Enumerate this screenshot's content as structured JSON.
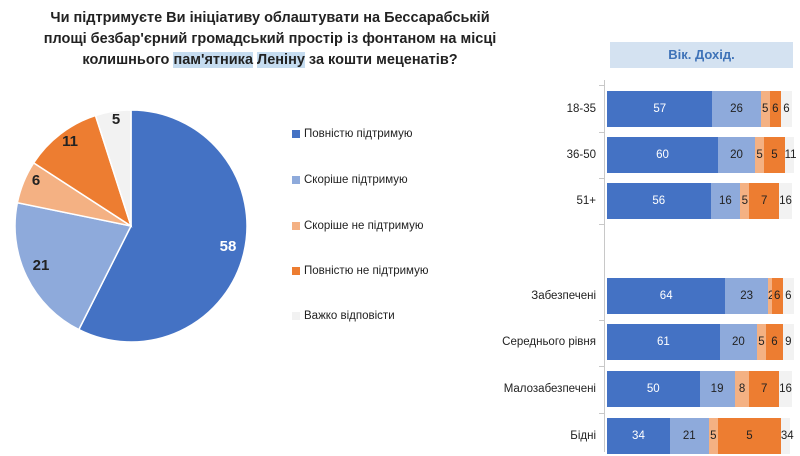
{
  "title": {
    "line1": "Чи підтримуєте Ви ініціативу облаштувати на Бессарабській",
    "line2": "площі безбар'єрний громадський простір із фонтаном на місці",
    "line3_pre": "колишнього ",
    "line3_hl1": "пам'ятника",
    "line3_mid": " ",
    "line3_hl2": "Леніну",
    "line3_post": " за кошти меценатів?"
  },
  "colors": {
    "fully_support": "#4472c4",
    "rather_support": "#8eaadb",
    "rather_not": "#f4b183",
    "fully_not": "#ed7d31",
    "hard_to_say": "#f2f2f2"
  },
  "legend": [
    "Повністю підтримую",
    "Скоріше підтримую",
    "Скоріше не підтримую",
    "Повністю не підтримую",
    "Важко відповісти"
  ],
  "header_label": "Вік. Дохід.",
  "chart_data": [
    {
      "type": "pie",
      "title": "",
      "labels": [
        "Повністю підтримую",
        "Скоріше підтримую",
        "Скоріше не підтримую",
        "Повністю не підтримую",
        "Важко відповісти"
      ],
      "values": [
        58,
        21,
        6,
        11,
        5
      ]
    },
    {
      "type": "bar",
      "orientation": "horizontal",
      "stacked": true,
      "categories": [
        "18-35",
        "36-50",
        "51+",
        "Забезпечені",
        "Середнього рівня",
        "Малозабезпечені",
        "Бідні"
      ],
      "series": [
        {
          "name": "Повністю підтримую",
          "values": [
            57,
            60,
            56,
            64,
            61,
            50,
            34
          ]
        },
        {
          "name": "Скоріше підтримую",
          "values": [
            26,
            20,
            16,
            23,
            20,
            19,
            21
          ]
        },
        {
          "name": "Скоріше не підтримую",
          "values": [
            5,
            5,
            5,
            2,
            5,
            8,
            5
          ]
        },
        {
          "name": "Повністю не підтримую",
          "values": [
            6,
            11,
            16,
            6,
            9,
            16,
            34
          ]
        },
        {
          "name": "Важко відповісти",
          "values": [
            6,
            5,
            7,
            6,
            6,
            7,
            5
          ]
        }
      ],
      "label_order": [
        [
          "57",
          "26",
          "5",
          "6",
          "6"
        ],
        [
          "60",
          "20",
          "5",
          "5",
          "11"
        ],
        [
          "56",
          "16",
          "5",
          "7",
          "16"
        ],
        [
          "64",
          "23",
          "2",
          "6",
          "6"
        ],
        [
          "61",
          "20",
          "5",
          "6",
          "9"
        ],
        [
          "50",
          "19",
          "8",
          "7",
          "16"
        ],
        [
          "34",
          "21",
          "5",
          "5",
          "34"
        ]
      ],
      "xlim": [
        0,
        100
      ]
    }
  ]
}
